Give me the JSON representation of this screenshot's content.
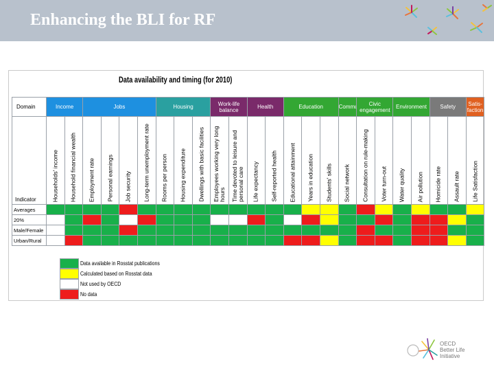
{
  "slide": {
    "title": "Enhancing the BLI for RF"
  },
  "table": {
    "title": "Data availability and timing (for 2010)",
    "domain_label": "Domain",
    "indicator_label": "Indicator",
    "domains": [
      {
        "label": "Income",
        "span": 2,
        "color": "#1e90e0"
      },
      {
        "label": "Jobs",
        "span": 4,
        "color": "#1e90e0"
      },
      {
        "label": "Housing",
        "span": 3,
        "color": "#2aa0a0"
      },
      {
        "label": "Work-life balance",
        "span": 2,
        "color": "#7a2a6a"
      },
      {
        "label": "Health",
        "span": 2,
        "color": "#7a2a6a"
      },
      {
        "label": "Education",
        "span": 3,
        "color": "#33a733"
      },
      {
        "label": "Community",
        "span": 1,
        "color": "#33a733"
      },
      {
        "label": "Civic engagement",
        "span": 2,
        "color": "#33a733"
      },
      {
        "label": "Environment",
        "span": 2,
        "color": "#33a733"
      },
      {
        "label": "Safety",
        "span": 2,
        "color": "#7a7a7a"
      },
      {
        "label": "Satis-faction",
        "span": 1,
        "color": "#e06020"
      }
    ],
    "indicators": [
      "Households' income",
      "Household financial wealth",
      "Employment rate",
      "Personal earnings",
      "Job security",
      "Long-term unemployment rate",
      "Rooms per person",
      "Housing expenditure",
      "Dwellings with basic facilities",
      "Employees working very long hours",
      "Time devoted to leisure and personal care",
      "Life expectancy",
      "Self-reported health",
      "Educational attainment",
      "Years in education",
      "Students' skills",
      "Social network",
      "Consultation on rule-making",
      "Voter turn-out",
      "Water quality",
      "Air pollution",
      "Homicide rate",
      "Assault rate",
      "Life Satisfaction"
    ],
    "rows": [
      {
        "label": "Averages",
        "cells": [
          "G",
          "G",
          "G",
          "G",
          "R",
          "G",
          "G",
          "G",
          "G",
          "G",
          "G",
          "G",
          "G",
          "G",
          "Y",
          "Y",
          "G",
          "R",
          "Y",
          "G",
          "Y",
          "G",
          "G",
          "Y"
        ]
      },
      {
        "label": "20%",
        "cells": [
          "W",
          "G",
          "R",
          "G",
          "W",
          "R",
          "G",
          "G",
          "G",
          "W",
          "W",
          "R",
          "G",
          "W",
          "R",
          "Y",
          "G",
          "G",
          "R",
          "G",
          "R",
          "R",
          "Y",
          "G"
        ]
      },
      {
        "label": "Male/Female",
        "cells": [
          "W",
          "G",
          "G",
          "G",
          "R",
          "G",
          "G",
          "G",
          "G",
          "G",
          "G",
          "G",
          "G",
          "G",
          "G",
          "G",
          "G",
          "R",
          "G",
          "G",
          "R",
          "R",
          "G",
          "G"
        ]
      },
      {
        "label": "Urban/Rural",
        "cells": [
          "W",
          "R",
          "G",
          "G",
          "G",
          "G",
          "G",
          "G",
          "G",
          "G",
          "G",
          "G",
          "G",
          "R",
          "R",
          "Y",
          "G",
          "R",
          "R",
          "G",
          "R",
          "R",
          "Y",
          "G"
        ]
      }
    ],
    "colors": {
      "G": "#18b04a",
      "Y": "#ffff00",
      "W": "#ffffff",
      "R": "#ee1c1c"
    }
  },
  "legend": [
    {
      "color": "#18b04a",
      "text": "Data available in Rosstat publications"
    },
    {
      "color": "#ffff00",
      "text": "Calculated based on Rosstat data"
    },
    {
      "color": "#ffffff",
      "text": "Not used by OECD"
    },
    {
      "color": "#ee1c1c",
      "text": "No data"
    }
  ],
  "logo": {
    "line1": "OECD",
    "line2": "Better Life",
    "line3": "Initiative"
  }
}
